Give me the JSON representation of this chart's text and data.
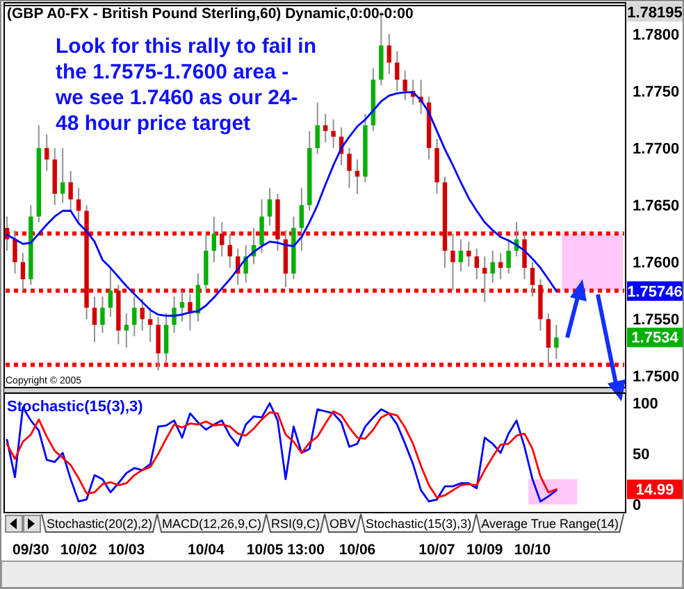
{
  "chart_data": [
    {
      "type": "candlestick",
      "title": "(GBP A0-FX - British Pound Sterling,60) Dynamic,0:00-0:00",
      "categories": [
        null,
        null,
        null,
        null,
        null,
        null,
        null,
        null,
        null,
        null,
        null,
        null,
        null,
        null,
        null,
        null,
        null,
        null,
        null,
        null,
        null,
        null,
        null,
        null,
        null,
        null,
        null,
        null,
        null,
        null,
        null,
        null,
        null,
        null,
        null,
        null,
        null,
        null,
        null,
        null,
        null,
        null,
        null,
        null,
        null,
        null,
        null,
        null,
        null,
        null,
        null,
        null,
        null,
        null,
        null,
        null,
        null,
        null,
        null,
        null,
        null,
        null,
        null,
        null,
        null,
        null,
        null,
        null,
        null,
        null,
        null,
        null,
        null,
        null,
        null,
        null,
        null,
        null
      ],
      "ohlc": [
        [
          1.763,
          1.764,
          1.761,
          1.762
        ],
        [
          1.762,
          1.7628,
          1.759,
          1.76
        ],
        [
          1.76,
          1.7608,
          1.7575,
          1.7585
        ],
        [
          1.7585,
          1.765,
          1.758,
          1.764
        ],
        [
          1.764,
          1.772,
          1.7635,
          1.77
        ],
        [
          1.77,
          1.7712,
          1.768,
          1.769
        ],
        [
          1.769,
          1.77,
          1.765,
          1.766
        ],
        [
          1.766,
          1.77,
          1.7652,
          1.767
        ],
        [
          1.767,
          1.768,
          1.7645,
          1.7655
        ],
        [
          1.7655,
          1.7665,
          1.7635,
          1.7645
        ],
        [
          1.7645,
          1.765,
          1.755,
          1.756
        ],
        [
          1.756,
          1.757,
          1.753,
          1.7545
        ],
        [
          1.7545,
          1.757,
          1.7538,
          1.756
        ],
        [
          1.756,
          1.7595,
          1.7552,
          1.7575
        ],
        [
          1.7575,
          1.758,
          1.7528,
          1.754
        ],
        [
          1.754,
          1.7555,
          1.7525,
          1.7545
        ],
        [
          1.7545,
          1.757,
          1.7535,
          1.756
        ],
        [
          1.756,
          1.7568,
          1.754,
          1.755
        ],
        [
          1.755,
          1.756,
          1.753,
          1.7545
        ],
        [
          1.7545,
          1.7552,
          1.7505,
          1.752
        ],
        [
          1.752,
          1.7555,
          1.7512,
          1.7545
        ],
        [
          1.7545,
          1.757,
          1.7538,
          1.756
        ],
        [
          1.756,
          1.7575,
          1.7548,
          1.7565
        ],
        [
          1.7565,
          1.7572,
          1.754,
          1.7555
        ],
        [
          1.7555,
          1.759,
          1.7548,
          1.758
        ],
        [
          1.758,
          1.7625,
          1.7575,
          1.761
        ],
        [
          1.761,
          1.764,
          1.76,
          1.7625
        ],
        [
          1.7625,
          1.7635,
          1.7605,
          1.7615
        ],
        [
          1.7615,
          1.7625,
          1.7595,
          1.7605
        ],
        [
          1.7605,
          1.7612,
          1.758,
          1.759
        ],
        [
          1.759,
          1.7615,
          1.7582,
          1.7605
        ],
        [
          1.7605,
          1.763,
          1.7598,
          1.7615
        ],
        [
          1.7615,
          1.7655,
          1.7608,
          1.764
        ],
        [
          1.764,
          1.7665,
          1.7632,
          1.7655
        ],
        [
          1.7655,
          1.766,
          1.761,
          1.762
        ],
        [
          1.762,
          1.7628,
          1.7578,
          1.759
        ],
        [
          1.759,
          1.764,
          1.7585,
          1.763
        ],
        [
          1.763,
          1.7665,
          1.761,
          1.765
        ],
        [
          1.765,
          1.7715,
          1.7645,
          1.77
        ],
        [
          1.77,
          1.774,
          1.7695,
          1.772
        ],
        [
          1.772,
          1.773,
          1.7705,
          1.7715
        ],
        [
          1.7715,
          1.7725,
          1.77,
          1.771
        ],
        [
          1.771,
          1.7718,
          1.7685,
          1.7695
        ],
        [
          1.7695,
          1.77,
          1.7665,
          1.768
        ],
        [
          1.768,
          1.769,
          1.766,
          1.7675
        ],
        [
          1.7675,
          1.773,
          1.767,
          1.772
        ],
        [
          1.772,
          1.777,
          1.7715,
          1.776
        ],
        [
          1.776,
          1.78195,
          1.7755,
          1.779
        ],
        [
          1.779,
          1.78,
          1.7765,
          1.7775
        ],
        [
          1.7775,
          1.7785,
          1.775,
          1.776
        ],
        [
          1.776,
          1.7768,
          1.7742,
          1.775
        ],
        [
          1.775,
          1.776,
          1.7738,
          1.7745
        ],
        [
          1.7745,
          1.776,
          1.773,
          1.774
        ],
        [
          1.774,
          1.7745,
          1.769,
          1.77
        ],
        [
          1.77,
          1.7708,
          1.766,
          1.767
        ],
        [
          1.767,
          1.7675,
          1.7595,
          1.761
        ],
        [
          1.761,
          1.7625,
          1.7575,
          1.76
        ],
        [
          1.76,
          1.762,
          1.7592,
          1.761
        ],
        [
          1.761,
          1.7618,
          1.7596,
          1.7605
        ],
        [
          1.7605,
          1.7612,
          1.7585,
          1.7595
        ],
        [
          1.7595,
          1.7605,
          1.7565,
          1.759
        ],
        [
          1.759,
          1.761,
          1.7582,
          1.76
        ],
        [
          1.76,
          1.7608,
          1.7585,
          1.7595
        ],
        [
          1.7595,
          1.762,
          1.759,
          1.761
        ],
        [
          1.761,
          1.7635,
          1.7605,
          1.762
        ],
        [
          1.762,
          1.7625,
          1.7585,
          1.7595
        ],
        [
          1.7595,
          1.76,
          1.757,
          1.758
        ],
        [
          1.758,
          1.7585,
          1.754,
          1.755
        ],
        [
          1.755,
          1.7555,
          1.7508,
          1.7525
        ],
        [
          1.7525,
          1.7545,
          1.7515,
          1.7534
        ],
        null,
        null,
        null,
        null,
        null,
        null,
        null,
        null
      ],
      "colors": [
        "#d00000",
        "#d00000",
        "#d00000",
        "#00b000",
        "#00b000",
        "#d00000",
        "#d00000",
        "#00b000",
        "#d00000",
        "#d00000",
        "#d00000",
        "#d00000",
        "#00b000",
        "#00b000",
        "#d00000",
        "#00b000",
        "#00b000",
        "#d00000",
        "#d00000",
        "#d00000",
        "#00b000",
        "#00b000",
        "#00b000",
        "#d00000",
        "#00b000",
        "#00b000",
        "#00b000",
        "#d00000",
        "#d00000",
        "#d00000",
        "#00b000",
        "#00b000",
        "#00b000",
        "#00b000",
        "#d00000",
        "#d00000",
        "#00b000",
        "#00b000",
        "#00b000",
        "#00b000",
        "#d00000",
        "#d00000",
        "#d00000",
        "#d00000",
        "#d00000",
        "#00b000",
        "#00b000",
        "#00b000",
        "#d00000",
        "#d00000",
        "#d00000",
        "#d00000",
        "#d00000",
        "#d00000",
        "#d00000",
        "#d00000",
        "#d00000",
        "#00b000",
        "#d00000",
        "#d00000",
        "#d00000",
        "#00b000",
        "#d00000",
        "#00b000",
        "#00b000",
        "#d00000",
        "#d00000",
        "#d00000",
        "#d00000",
        "#00b000",
        null,
        null,
        null,
        null,
        null,
        null,
        null,
        null
      ],
      "series": [
        {
          "type": "line",
          "color": "#0000ff",
          "values": [
            1.7624,
            1.762,
            1.7616,
            1.7617,
            1.7625,
            1.7633,
            1.764,
            1.7645,
            1.7645,
            1.7634,
            1.7627,
            1.7618,
            1.7602,
            1.7595,
            1.7587,
            1.7579,
            1.7572,
            1.7565,
            1.7558,
            1.7554,
            1.7553,
            1.7553,
            1.7554,
            1.7556,
            1.7557,
            1.7562,
            1.7569,
            1.7577,
            1.7585,
            1.7594,
            1.7603,
            1.7609,
            1.7614,
            1.7618,
            1.7617,
            1.7615,
            1.7614,
            1.7622,
            1.7635,
            1.765,
            1.7668,
            1.7685,
            1.77,
            1.771,
            1.7719,
            1.7725,
            1.7733,
            1.7741,
            1.7746,
            1.7748,
            1.7749,
            1.7749,
            1.7742,
            1.7731,
            1.7715,
            1.7699,
            1.7685,
            1.767,
            1.7656,
            1.7645,
            1.7635,
            1.7628,
            1.7622,
            1.7619,
            1.7615,
            1.761,
            1.7603,
            1.7595,
            1.7585,
            1.75746,
            null,
            null,
            null,
            null,
            null,
            null,
            null,
            null
          ]
        }
      ],
      "ylim": [
        1.749,
        1.7825
      ],
      "yticks": [
        {
          "value": 1.75,
          "label": "1.7500"
        },
        {
          "value": 1.755,
          "label": "1.7550"
        },
        {
          "value": 1.76,
          "label": "1.7600"
        },
        {
          "value": 1.765,
          "label": "1.7650"
        },
        {
          "value": 1.77,
          "label": "1.7700"
        },
        {
          "value": 1.775,
          "label": "1.7750"
        },
        {
          "value": 1.78,
          "label": "1.7800"
        }
      ],
      "tick_labels": "y",
      "ref_lines": [
        {
          "axis": "y",
          "value": 1.7625,
          "color": "#ff0000",
          "line_style": "dotted"
        },
        {
          "axis": "y",
          "value": 1.7575,
          "color": "#ff0000",
          "line_style": "dotted"
        },
        {
          "axis": "y",
          "value": 1.751,
          "color": "#ff0000",
          "line_style": "dotted"
        }
      ],
      "bands": [
        {
          "axis": "y",
          "from": 1.7575,
          "to": 1.7625,
          "color": "#ffc8f8"
        }
      ],
      "annotations": [
        "Look for this rally to fail in the 1.7575-1.7600 area - we see 1.7460 as our 24-48 hour price target",
        "Copyright © 2005",
        {
          "text": "1.78195",
          "y": 1.78195
        },
        {
          "text": "1.75746",
          "y": 1.75746
        },
        {
          "text": "1.7534",
          "y": 1.7534
        }
      ]
    },
    {
      "type": "line",
      "title": "Stochastic(15(3),3)",
      "categories": [
        null,
        null,
        null,
        "09/30",
        null,
        null,
        null,
        null,
        null,
        "10/02",
        null,
        null,
        null,
        null,
        null,
        "10/03",
        null,
        null,
        null,
        null,
        null,
        null,
        null,
        null,
        null,
        "10/04",
        null,
        null,
        null,
        null,
        null,
        null,
        null,
        null,
        null,
        "10/05 13:00",
        null,
        null,
        null,
        null,
        null,
        null,
        null,
        null,
        "10/06",
        null,
        null,
        null,
        null,
        null,
        null,
        null,
        null,
        null,
        "10/07",
        null,
        null,
        null,
        null,
        null,
        "10/09",
        null,
        null,
        null,
        null,
        null,
        "10/10",
        null,
        null,
        null,
        null,
        null,
        null,
        null,
        null,
        null,
        null,
        null
      ],
      "series": [
        {
          "color": "#0000ff",
          "values": [
            64,
            27,
            96,
            83,
            73,
            44,
            42,
            51,
            25,
            3,
            5,
            29,
            25,
            12,
            21,
            31,
            36,
            34,
            40,
            77,
            78,
            83,
            66,
            90,
            81,
            74,
            79,
            83,
            68,
            58,
            79,
            87,
            86,
            100,
            83,
            25,
            77,
            51,
            55,
            94,
            92,
            90,
            81,
            57,
            60,
            77,
            86,
            94,
            90,
            79,
            60,
            40,
            14,
            3,
            5,
            18,
            18,
            21,
            21,
            16,
            66,
            60,
            51,
            70,
            83,
            57,
            25,
            3,
            8,
            14,
            null,
            null,
            null,
            null,
            null,
            null,
            null,
            null
          ]
        },
        {
          "color": "#ff0000",
          "values": [
            60,
            45,
            62,
            69,
            84,
            67,
            53,
            46,
            39,
            26,
            11,
            12,
            20,
            22,
            19,
            21,
            29,
            34,
            37,
            50,
            65,
            79,
            76,
            80,
            79,
            82,
            78,
            79,
            77,
            70,
            68,
            75,
            84,
            91,
            90,
            69,
            62,
            51,
            61,
            67,
            80,
            92,
            88,
            76,
            66,
            65,
            74,
            86,
            90,
            88,
            76,
            60,
            38,
            19,
            7,
            9,
            14,
            19,
            20,
            19,
            34,
            47,
            59,
            60,
            68,
            70,
            55,
            28,
            12,
            14.99,
            null,
            null,
            null,
            null,
            null,
            null,
            null,
            null
          ]
        }
      ],
      "ylim": [
        -8,
        110
      ],
      "yticks": [
        0,
        50,
        100
      ],
      "bands": [
        {
          "axis": "y",
          "from": 0,
          "to": 25,
          "color": "#ffc8f8"
        }
      ],
      "annotations": [
        "Stochastic(20(2),2)",
        "MACD(12,26,9,C)",
        "RSI(9,C)",
        "OBV",
        "Stochastic(15(3),3)",
        "Average True Range(14)",
        {
          "text": "14.99",
          "y": 14.99
        }
      ]
    }
  ]
}
